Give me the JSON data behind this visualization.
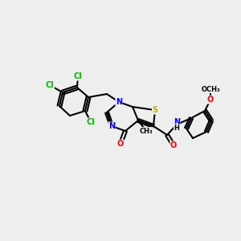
{
  "background_color": "#eeeeee",
  "atom_colors": {
    "N": "#0000ff",
    "O": "#ff0000",
    "S": "#ccaa00",
    "Cl": "#00bb00",
    "C": "#000000",
    "H": "#000000"
  }
}
